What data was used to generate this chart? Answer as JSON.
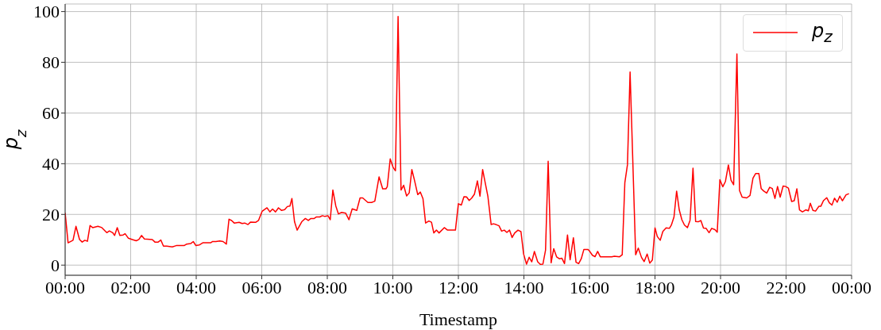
{
  "chart_data": {
    "type": "line",
    "xlabel": "Timestamp",
    "ylabel": "p$_{z}$",
    "x": [
      0,
      0.09,
      0.24,
      0.33,
      0.44,
      0.52,
      0.6,
      0.68,
      0.76,
      0.84,
      1.0,
      1.12,
      1.27,
      1.35,
      1.45,
      1.51,
      1.59,
      1.67,
      1.77,
      1.83,
      1.93,
      2.05,
      2.17,
      2.25,
      2.33,
      2.42,
      2.66,
      2.74,
      2.84,
      2.92,
      3.0,
      3.1,
      3.27,
      3.39,
      3.63,
      3.71,
      3.83,
      3.91,
      3.99,
      4.1,
      4.2,
      4.44,
      4.5,
      4.6,
      4.72,
      4.82,
      4.92,
      5.0,
      5.08,
      5.16,
      5.31,
      5.4,
      5.48,
      5.58,
      5.66,
      5.82,
      5.9,
      6.01,
      6.16,
      6.25,
      6.33,
      6.42,
      6.51,
      6.6,
      6.7,
      6.78,
      6.86,
      6.92,
      7.0,
      7.08,
      7.22,
      7.33,
      7.42,
      7.5,
      7.6,
      7.67,
      7.77,
      7.85,
      7.93,
      8.02,
      8.09,
      8.17,
      8.26,
      8.34,
      8.44,
      8.56,
      8.66,
      8.76,
      8.9,
      9.0,
      9.08,
      9.24,
      9.35,
      9.45,
      9.58,
      9.69,
      9.79,
      9.83,
      9.92,
      10.01,
      10.08,
      10.16,
      10.25,
      10.33,
      10.42,
      10.5,
      10.58,
      10.66,
      10.76,
      10.84,
      10.92,
      11.0,
      11.1,
      11.18,
      11.25,
      11.33,
      11.41,
      11.57,
      11.67,
      11.91,
      12.0,
      12.09,
      12.17,
      12.25,
      12.33,
      12.41,
      12.49,
      12.58,
      12.66,
      12.74,
      12.82,
      12.9,
      13.0,
      13.07,
      13.15,
      13.24,
      13.32,
      13.4,
      13.48,
      13.56,
      13.64,
      13.72,
      13.82,
      13.91,
      13.99,
      14.08,
      14.16,
      14.24,
      14.32,
      14.42,
      14.5,
      14.58,
      14.66,
      14.74,
      14.83,
      14.91,
      15.0,
      15.08,
      15.16,
      15.24,
      15.33,
      15.41,
      15.51,
      15.59,
      15.67,
      15.75,
      15.83,
      15.95,
      16.0,
      16.09,
      16.17,
      16.25,
      16.33,
      16.68,
      16.76,
      16.92,
      17.0,
      17.08,
      17.16,
      17.24,
      17.41,
      17.49,
      17.59,
      17.67,
      17.76,
      17.84,
      17.92,
      18.0,
      18.07,
      18.16,
      18.24,
      18.34,
      18.44,
      18.5,
      18.58,
      18.66,
      18.74,
      18.82,
      18.9,
      18.99,
      19.07,
      19.16,
      19.24,
      19.32,
      19.4,
      19.48,
      19.56,
      19.65,
      19.73,
      19.83,
      19.9,
      19.98,
      20.07,
      20.15,
      20.24,
      20.32,
      20.4,
      20.5,
      20.58,
      20.66,
      20.8,
      20.9,
      20.99,
      21.07,
      21.17,
      21.24,
      21.32,
      21.41,
      21.5,
      21.58,
      21.66,
      21.74,
      21.82,
      21.91,
      21.99,
      22.07,
      22.17,
      22.25,
      22.33,
      22.41,
      22.5,
      22.6,
      22.68,
      22.74,
      22.82,
      22.9,
      23.0,
      23.06,
      23.14,
      23.24,
      23.32,
      23.4,
      23.48,
      23.56,
      23.64,
      23.72,
      23.83,
      23.92
    ],
    "series": [
      {
        "name": "p$_{z}$",
        "color": "#ff0000",
        "values": [
          20.6,
          8.8,
          9.8,
          15.3,
          10.1,
          9.1,
          9.8,
          9.4,
          15.6,
          14.8,
          15.3,
          14.8,
          12.8,
          13.5,
          12.8,
          11.7,
          14.8,
          11.7,
          11.9,
          12.4,
          10.6,
          10.1,
          9.6,
          10.1,
          11.7,
          10.3,
          10.1,
          9.1,
          9.1,
          9.9,
          7.5,
          7.5,
          7.2,
          7.7,
          7.7,
          8.3,
          8.5,
          9.3,
          7.7,
          8.0,
          8.8,
          8.8,
          9.3,
          9.3,
          9.5,
          9.3,
          8.3,
          18.1,
          17.6,
          16.6,
          16.9,
          16.4,
          16.6,
          16.0,
          17.0,
          16.9,
          17.6,
          21.2,
          22.6,
          21.0,
          22.1,
          21.0,
          22.6,
          21.6,
          21.9,
          23.1,
          23.3,
          26.3,
          17.1,
          13.8,
          17.1,
          18.4,
          17.6,
          18.4,
          18.4,
          19.0,
          19.0,
          19.5,
          19.2,
          19.5,
          17.9,
          29.6,
          23.3,
          20.2,
          20.8,
          20.5,
          17.9,
          22.2,
          21.6,
          26.5,
          26.5,
          24.7,
          24.7,
          25.2,
          34.8,
          30.1,
          30.1,
          30.9,
          41.9,
          38.5,
          37.2,
          98.1,
          29.6,
          31.5,
          27.3,
          28.5,
          37.7,
          33.5,
          27.8,
          28.8,
          26.2,
          16.6,
          17.4,
          16.9,
          12.7,
          13.8,
          12.7,
          14.8,
          13.8,
          13.8,
          24.2,
          23.7,
          27.0,
          26.9,
          25.5,
          26.5,
          28.0,
          33.2,
          27.2,
          37.7,
          32.4,
          27.2,
          16.0,
          16.3,
          16.0,
          15.5,
          13.4,
          13.8,
          12.9,
          13.8,
          10.9,
          12.7,
          13.8,
          13.2,
          4.4,
          0.4,
          3.1,
          1.3,
          5.4,
          1.3,
          0.3,
          0.4,
          5.9,
          41.0,
          0.9,
          6.5,
          3.2,
          2.5,
          2.7,
          0.6,
          11.9,
          2.1,
          10.8,
          1.1,
          0.6,
          2.5,
          6.2,
          6.2,
          5.6,
          3.9,
          3.3,
          5.4,
          3.3,
          3.3,
          3.5,
          3.3,
          4.1,
          32.5,
          39.6,
          76.2,
          4.1,
          6.7,
          3.0,
          1.4,
          4.4,
          0.8,
          2.0,
          14.7,
          11.3,
          9.8,
          13.3,
          14.7,
          14.5,
          15.8,
          19.0,
          29.2,
          21.8,
          17.9,
          15.8,
          14.8,
          17.7,
          38.2,
          17.2,
          17.1,
          17.6,
          14.6,
          14.5,
          12.8,
          14.5,
          14.0,
          13.0,
          33.7,
          30.9,
          33.0,
          39.5,
          33.5,
          31.7,
          83.3,
          29.4,
          26.8,
          26.5,
          27.5,
          34.3,
          36.1,
          36.1,
          30.2,
          29.2,
          28.4,
          30.7,
          30.2,
          26.3,
          31.0,
          26.8,
          31.2,
          31.0,
          30.4,
          25.1,
          25.4,
          30.1,
          21.8,
          21.0,
          21.8,
          21.4,
          24.4,
          21.6,
          21.3,
          23.2,
          23.2,
          25.4,
          26.6,
          24.6,
          23.7,
          26.4,
          24.8,
          27.2,
          25.4,
          27.7,
          28.2
        ]
      }
    ],
    "xlim": [
      0,
      24
    ],
    "xticks": [
      {
        "value": 0,
        "label": "00:00"
      },
      {
        "value": 2,
        "label": "02:00"
      },
      {
        "value": 4,
        "label": "04:00"
      },
      {
        "value": 6,
        "label": "06:00"
      },
      {
        "value": 8,
        "label": "08:00"
      },
      {
        "value": 10,
        "label": "10:00"
      },
      {
        "value": 12,
        "label": "12:00"
      },
      {
        "value": 14,
        "label": "14:00"
      },
      {
        "value": 16,
        "label": "16:00"
      },
      {
        "value": 18,
        "label": "18:00"
      },
      {
        "value": 20,
        "label": "20:00"
      },
      {
        "value": 22,
        "label": "22:00"
      },
      {
        "value": 24,
        "label": "00:00"
      }
    ],
    "ylim": [
      -4,
      103
    ],
    "yticks": [
      0,
      20,
      40,
      60,
      80,
      100
    ],
    "grid": true,
    "legend": "top right",
    "marker": "none",
    "line_style": "solid"
  }
}
